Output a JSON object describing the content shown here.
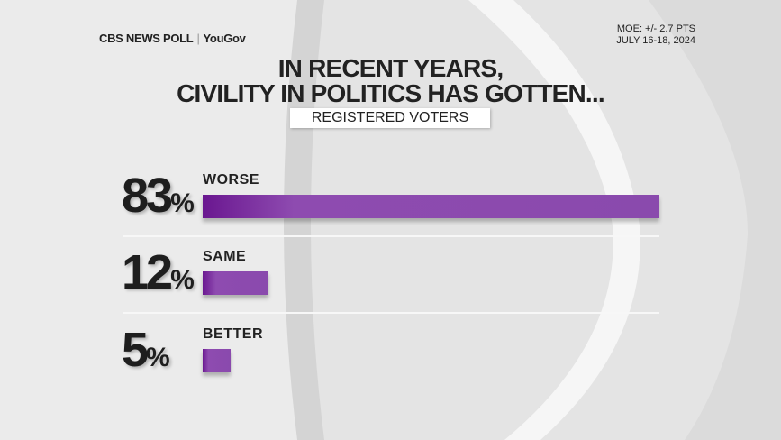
{
  "header": {
    "logo_cbs": "CBS NEWS POLL",
    "logo_yougov": "YouGov",
    "moe": "MOE: +/- 2.7 PTS",
    "dates": "JULY 16-18, 2024"
  },
  "chart_data": {
    "type": "bar",
    "orientation": "horizontal",
    "title_line1": "IN RECENT YEARS,",
    "title_line2": "CIVILITY IN POLITICS HAS GOTTEN...",
    "subtitle": "REGISTERED VOTERS",
    "categories": [
      "WORSE",
      "SAME",
      "BETTER"
    ],
    "values": [
      83,
      12,
      5
    ],
    "value_labels": [
      "83",
      "12",
      "5"
    ],
    "unit": "%",
    "xlim": [
      0,
      83
    ],
    "grid": false,
    "bar_color": "#8a4aad",
    "bar_color_dark": "#6a1790"
  }
}
